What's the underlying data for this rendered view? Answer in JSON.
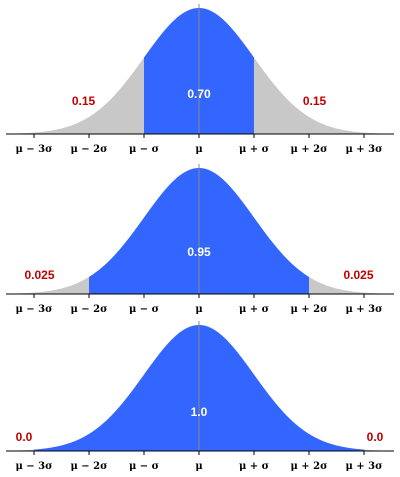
{
  "colors": {
    "shaded": "#3366ff",
    "tail": "#c8c8c8",
    "axis": "#000000",
    "center_line": "#888888",
    "center_text": "#ffffff",
    "tail_text": "#c00000"
  },
  "tick_labels": [
    "μ − 3σ",
    "μ − 2σ",
    "μ − σ",
    "μ",
    "μ + σ",
    "μ + 2σ",
    "μ + 3σ"
  ],
  "panels": [
    {
      "shaded_sigma": 1,
      "center_value": "0.70",
      "tail_value": "0.15"
    },
    {
      "shaded_sigma": 2,
      "center_value": "0.95",
      "tail_value": "0.025"
    },
    {
      "shaded_sigma": 3,
      "center_value": "1.0",
      "tail_value": "0.0"
    }
  ]
}
